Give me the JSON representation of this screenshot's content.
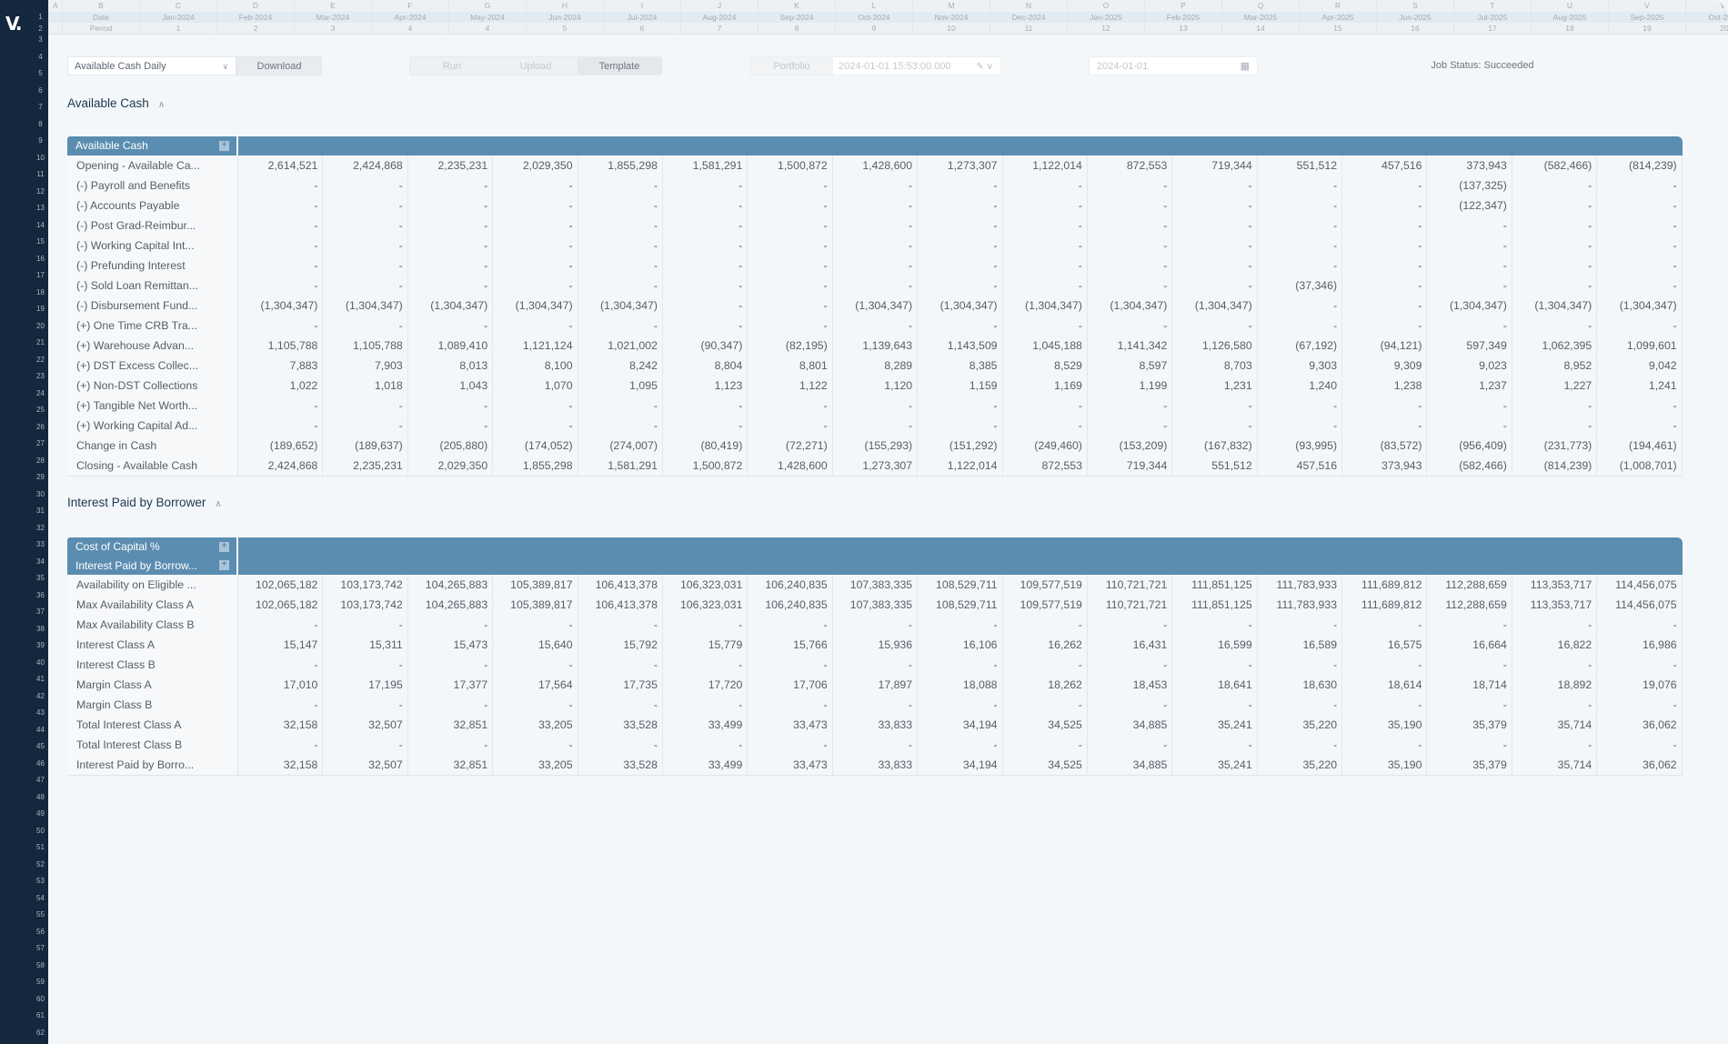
{
  "app": {
    "logo": "V."
  },
  "grid": {
    "row_numbers": [
      1,
      2,
      3,
      4,
      5,
      6,
      7,
      8,
      9,
      10,
      11,
      12,
      13,
      14,
      15,
      16,
      17,
      18,
      19,
      20,
      21,
      22,
      23,
      24,
      25,
      26,
      27,
      28,
      29,
      30,
      31,
      32,
      33,
      34,
      35,
      36,
      37,
      38,
      39,
      40,
      41,
      42,
      43,
      44,
      45,
      46,
      47,
      48,
      49,
      50,
      51,
      52,
      53,
      54,
      55,
      56,
      57,
      58,
      59,
      60,
      61,
      62
    ],
    "columns": [
      "A",
      "B",
      "C",
      "D",
      "E",
      "F",
      "G",
      "H",
      "I",
      "J",
      "K",
      "L",
      "M",
      "N",
      "O",
      "P",
      "Q",
      "R",
      "S",
      "T",
      "U",
      "V",
      "W"
    ],
    "date_row": [
      "",
      "Date",
      "Jan-2024",
      "Feb-2024",
      "Mar-2024",
      "Apr-2024",
      "May-2024",
      "Jun-2024",
      "Jul-2024",
      "Aug-2024",
      "Sep-2024",
      "Oct-2024",
      "Nov-2024",
      "Dec-2024",
      "Jan-2025",
      "Feb-2025",
      "Mar-2025",
      "Apr-2025",
      "Jun-2025",
      "Jul-2025",
      "Aug-2025",
      "Sep-2025",
      "Oct-2025"
    ],
    "period_row": [
      "",
      "Period",
      "1",
      "2",
      "3",
      "4",
      "4",
      "5",
      "6",
      "7",
      "8",
      "9",
      "10",
      "11",
      "12",
      "13",
      "14",
      "15",
      "16",
      "17",
      "18",
      "19",
      "20"
    ]
  },
  "toolbar": {
    "report_select": "Available Cash Daily",
    "download": "Download",
    "actions": [
      {
        "label": "Run",
        "active": false
      },
      {
        "label": "Upload",
        "active": false
      },
      {
        "label": "Template",
        "active": true
      }
    ],
    "portfolio_label": "Portfolio",
    "portfolio_value": "2024-01-01 15:53:00.000",
    "date_value": "2024-01-01",
    "job_status": "Job Status: Succeeded"
  },
  "colors": {
    "sidebar": "#14273d",
    "table_header": "#5b8db0",
    "background": "#f3f7f9"
  },
  "sections": [
    {
      "title": "Available Cash",
      "header_rows": [
        "Available Cash"
      ],
      "rows": [
        {
          "label": "Opening - Available Ca...",
          "values": [
            "2,614,521",
            "2,424,868",
            "2,235,231",
            "2,029,350",
            "1,855,298",
            "1,581,291",
            "1,500,872",
            "1,428,600",
            "1,273,307",
            "1,122,014",
            "872,553",
            "719,344",
            "551,512",
            "457,516",
            "373,943",
            "(582,466)",
            "(814,239)"
          ]
        },
        {
          "label": "(-) Payroll and Benefits",
          "values": [
            "-",
            "-",
            "-",
            "-",
            "-",
            "-",
            "-",
            "-",
            "-",
            "-",
            "-",
            "-",
            "-",
            "-",
            "(137,325)",
            "-",
            "-"
          ]
        },
        {
          "label": "(-) Accounts Payable",
          "values": [
            "-",
            "-",
            "-",
            "-",
            "-",
            "-",
            "-",
            "-",
            "-",
            "-",
            "-",
            "-",
            "-",
            "-",
            "(122,347)",
            "-",
            "-"
          ]
        },
        {
          "label": "(-) Post Grad-Reimbur...",
          "values": [
            "-",
            "-",
            "-",
            "-",
            "-",
            "-",
            "-",
            "-",
            "-",
            "-",
            "-",
            "-",
            "-",
            "-",
            "-",
            "-",
            "-"
          ]
        },
        {
          "label": "(-) Working Capital Int...",
          "values": [
            "-",
            "-",
            "-",
            "-",
            "-",
            "-",
            "-",
            "-",
            "-",
            "-",
            "-",
            "-",
            "-",
            "-",
            "-",
            "-",
            "-"
          ]
        },
        {
          "label": "(-) Prefunding Interest",
          "values": [
            "-",
            "-",
            "-",
            "-",
            "-",
            "-",
            "-",
            "-",
            "-",
            "-",
            "-",
            "-",
            "-",
            "-",
            "-",
            "-",
            "-"
          ]
        },
        {
          "label": "(-) Sold Loan Remittan...",
          "values": [
            "-",
            "-",
            "-",
            "-",
            "-",
            "-",
            "-",
            "-",
            "-",
            "-",
            "-",
            "-",
            "(37,346)",
            "-",
            "-",
            "-",
            "-"
          ]
        },
        {
          "label": "(-) Disbursement Fund...",
          "values": [
            "(1,304,347)",
            "(1,304,347)",
            "(1,304,347)",
            "(1,304,347)",
            "(1,304,347)",
            "-",
            "-",
            "(1,304,347)",
            "(1,304,347)",
            "(1,304,347)",
            "(1,304,347)",
            "(1,304,347)",
            "-",
            "-",
            "(1,304,347)",
            "(1,304,347)",
            "(1,304,347)"
          ]
        },
        {
          "label": "(+) One Time CRB Tra...",
          "values": [
            "-",
            "-",
            "-",
            "-",
            "-",
            "-",
            "-",
            "-",
            "-",
            "-",
            "-",
            "-",
            "-",
            "-",
            "-",
            "-",
            "-"
          ]
        },
        {
          "label": "(+) Warehouse Advan...",
          "values": [
            "1,105,788",
            "1,105,788",
            "1,089,410",
            "1,121,124",
            "1,021,002",
            "(90,347)",
            "(82,195)",
            "1,139,643",
            "1,143,509",
            "1,045,188",
            "1,141,342",
            "1,126,580",
            "(67,192)",
            "(94,121)",
            "597,349",
            "1,062,395",
            "1,099,601"
          ]
        },
        {
          "label": "(+) DST Excess Collec...",
          "values": [
            "7,883",
            "7,903",
            "8,013",
            "8,100",
            "8,242",
            "8,804",
            "8,801",
            "8,289",
            "8,385",
            "8,529",
            "8,597",
            "8,703",
            "9,303",
            "9,309",
            "9,023",
            "8,952",
            "9,042"
          ]
        },
        {
          "label": "(+) Non-DST Collections",
          "values": [
            "1,022",
            "1,018",
            "1,043",
            "1,070",
            "1,095",
            "1,123",
            "1,122",
            "1,120",
            "1,159",
            "1,169",
            "1,199",
            "1,231",
            "1,240",
            "1,238",
            "1,237",
            "1,227",
            "1,241"
          ]
        },
        {
          "label": "(+) Tangible Net Worth...",
          "values": [
            "-",
            "-",
            "-",
            "-",
            "-",
            "-",
            "-",
            "-",
            "-",
            "-",
            "-",
            "-",
            "-",
            "-",
            "-",
            "-",
            "-"
          ]
        },
        {
          "label": "(+) Working Capital Ad...",
          "values": [
            "-",
            "-",
            "-",
            "-",
            "-",
            "-",
            "-",
            "-",
            "-",
            "-",
            "-",
            "-",
            "-",
            "-",
            "-",
            "-",
            "-"
          ]
        },
        {
          "label": "Change in Cash",
          "values": [
            "(189,652)",
            "(189,637)",
            "(205,880)",
            "(174,052)",
            "(274,007)",
            "(80,419)",
            "(72,271)",
            "(155,293)",
            "(151,292)",
            "(249,460)",
            "(153,209)",
            "(167,832)",
            "(93,995)",
            "(83,572)",
            "(956,409)",
            "(231,773)",
            "(194,461)"
          ]
        },
        {
          "label": "Closing - Available Cash",
          "values": [
            "2,424,868",
            "2,235,231",
            "2,029,350",
            "1,855,298",
            "1,581,291",
            "1,500,872",
            "1,428,600",
            "1,273,307",
            "1,122,014",
            "872,553",
            "719,344",
            "551,512",
            "457,516",
            "373,943",
            "(582,466)",
            "(814,239)",
            "(1,008,701)"
          ]
        }
      ]
    },
    {
      "title": "Interest Paid by Borrower",
      "header_rows": [
        "Cost of Capital %",
        "Interest Paid by Borrow..."
      ],
      "rows": [
        {
          "label": "Availability on Eligible ...",
          "values": [
            "102,065,182",
            "103,173,742",
            "104,265,883",
            "105,389,817",
            "106,413,378",
            "106,323,031",
            "106,240,835",
            "107,383,335",
            "108,529,711",
            "109,577,519",
            "110,721,721",
            "111,851,125",
            "111,783,933",
            "111,689,812",
            "112,288,659",
            "113,353,717",
            "114,456,075"
          ]
        },
        {
          "label": "Max Availability Class A",
          "values": [
            "102,065,182",
            "103,173,742",
            "104,265,883",
            "105,389,817",
            "106,413,378",
            "106,323,031",
            "106,240,835",
            "107,383,335",
            "108,529,711",
            "109,577,519",
            "110,721,721",
            "111,851,125",
            "111,783,933",
            "111,689,812",
            "112,288,659",
            "113,353,717",
            "114,456,075"
          ]
        },
        {
          "label": "Max Availability Class B",
          "values": [
            "-",
            "-",
            "-",
            "-",
            "-",
            "-",
            "-",
            "-",
            "-",
            "-",
            "-",
            "-",
            "-",
            "-",
            "-",
            "-",
            "-"
          ]
        },
        {
          "label": "Interest Class A",
          "values": [
            "15,147",
            "15,311",
            "15,473",
            "15,640",
            "15,792",
            "15,779",
            "15,766",
            "15,936",
            "16,106",
            "16,262",
            "16,431",
            "16,599",
            "16,589",
            "16,575",
            "16,664",
            "16,822",
            "16,986"
          ]
        },
        {
          "label": "Interest Class B",
          "values": [
            "-",
            "-",
            "-",
            "-",
            "-",
            "-",
            "-",
            "-",
            "-",
            "-",
            "-",
            "-",
            "-",
            "-",
            "-",
            "-",
            "-"
          ]
        },
        {
          "label": "Margin Class A",
          "values": [
            "17,010",
            "17,195",
            "17,377",
            "17,564",
            "17,735",
            "17,720",
            "17,706",
            "17,897",
            "18,088",
            "18,262",
            "18,453",
            "18,641",
            "18,630",
            "18,614",
            "18,714",
            "18,892",
            "19,076"
          ]
        },
        {
          "label": "Margin Class B",
          "values": [
            "-",
            "-",
            "-",
            "-",
            "-",
            "-",
            "-",
            "-",
            "-",
            "-",
            "-",
            "-",
            "-",
            "-",
            "-",
            "-",
            "-"
          ]
        },
        {
          "label": "Total Interest Class A",
          "values": [
            "32,158",
            "32,507",
            "32,851",
            "33,205",
            "33,528",
            "33,499",
            "33,473",
            "33,833",
            "34,194",
            "34,525",
            "34,885",
            "35,241",
            "35,220",
            "35,190",
            "35,379",
            "35,714",
            "36,062"
          ]
        },
        {
          "label": "Total Interest Class B",
          "values": [
            "-",
            "-",
            "-",
            "-",
            "-",
            "-",
            "-",
            "-",
            "-",
            "-",
            "-",
            "-",
            "-",
            "-",
            "-",
            "-",
            "-"
          ]
        },
        {
          "label": "Interest Paid by Borro...",
          "values": [
            "32,158",
            "32,507",
            "32,851",
            "33,205",
            "33,528",
            "33,499",
            "33,473",
            "33,833",
            "34,194",
            "34,525",
            "34,885",
            "35,241",
            "35,220",
            "35,190",
            "35,379",
            "35,714",
            "36,062"
          ]
        }
      ]
    }
  ]
}
